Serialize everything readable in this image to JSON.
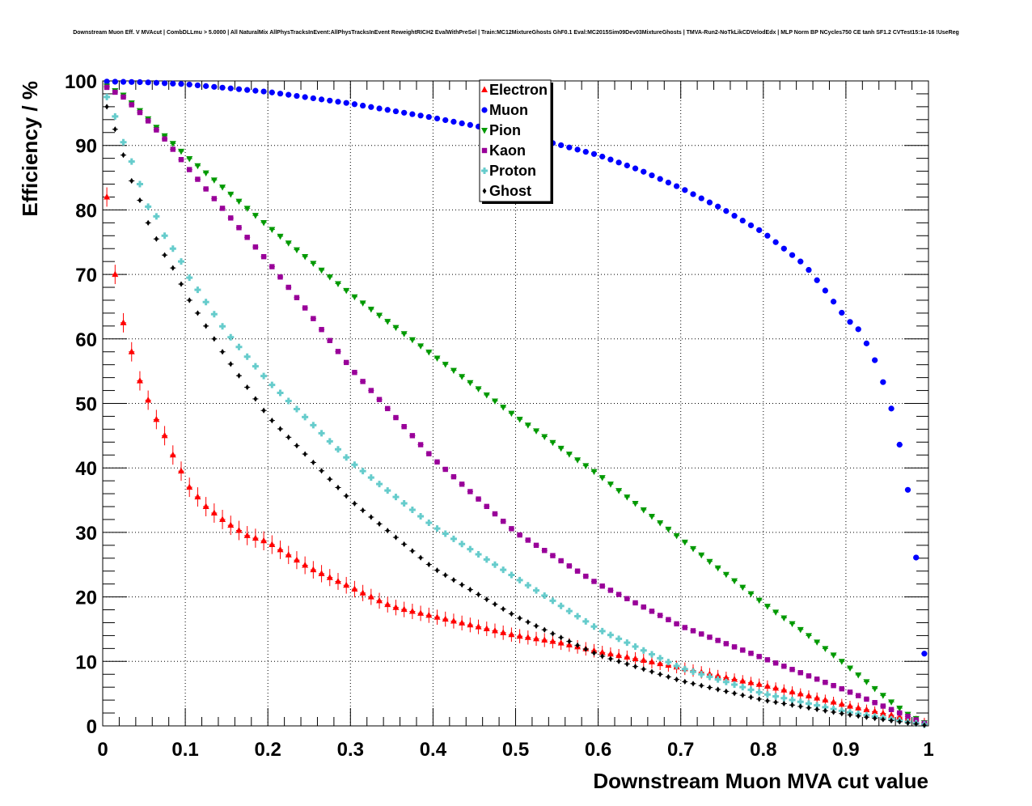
{
  "chart_data": {
    "type": "scatter",
    "title": "Downstream Muon Eff. V MVAcut | CombDLLmu > 5.0000 | All NaturalMix AllPhysTracksInEvent:AllPhysTracksInEvent ReweightRICH2 EvalWithPreSel | Train:MC12MixtureGhosts GhF0.1 Eval:MC2015Sim09Dev03MixtureGhosts | TMVA-Run2-NoTkLikCDVelodEdx | MLP Norm BP NCycles750 CE tanh SF1.2 CVTest15:1e-16 !UseReg",
    "xlabel": "Downstream Muon MVA cut value",
    "ylabel": "Efficiency / %",
    "xlim": [
      0,
      1
    ],
    "ylim": [
      0,
      100
    ],
    "x_ticks": [
      "0",
      "0.1",
      "0.2",
      "0.3",
      "0.4",
      "0.5",
      "0.6",
      "0.7",
      "0.8",
      "0.9",
      "1"
    ],
    "y_ticks": [
      "0",
      "10",
      "20",
      "30",
      "40",
      "50",
      "60",
      "70",
      "80",
      "90",
      "100"
    ],
    "grid": true,
    "legend_position": "top-center",
    "x_bins": {
      "start": 0.005,
      "step": 0.01,
      "count": 100
    },
    "series": [
      {
        "name": "Electron",
        "color": "#ff0000",
        "marker": "triangle-up",
        "error": 1.5,
        "anchors_x": [
          0.005,
          0.015,
          0.025,
          0.035,
          0.045,
          0.055,
          0.065,
          0.075,
          0.085,
          0.095,
          0.105,
          0.125,
          0.15,
          0.175,
          0.2,
          0.25,
          0.3,
          0.35,
          0.4,
          0.45,
          0.5,
          0.55,
          0.6,
          0.65,
          0.7,
          0.75,
          0.8,
          0.85,
          0.9,
          0.95,
          0.995
        ],
        "anchors_y": [
          82,
          70,
          62.5,
          58,
          53.5,
          50.5,
          47.5,
          45,
          42,
          39.5,
          37,
          34,
          31.5,
          29.5,
          28.5,
          24.5,
          21.5,
          18.5,
          17,
          15.5,
          14,
          13,
          11.5,
          10.3,
          9,
          7.6,
          6.3,
          4.8,
          3.2,
          1.8,
          0.5
        ]
      },
      {
        "name": "Muon",
        "color": "#0000ff",
        "marker": "circle",
        "error": 0.3,
        "anchors_x": [
          0.005,
          0.05,
          0.1,
          0.2,
          0.3,
          0.4,
          0.5,
          0.55,
          0.6,
          0.65,
          0.7,
          0.75,
          0.8,
          0.85,
          0.875,
          0.9,
          0.915,
          0.925,
          0.935,
          0.945,
          0.955,
          0.965,
          0.975,
          0.985,
          0.995
        ],
        "anchors_y": [
          99.9,
          99.8,
          99.5,
          98.3,
          96.5,
          94.3,
          91.8,
          90.2,
          88.5,
          86.2,
          83.4,
          80.2,
          76.5,
          71.5,
          67.5,
          63.2,
          61.5,
          59.3,
          56.7,
          53.3,
          49.2,
          43.6,
          36.6,
          26.1,
          11.2
        ]
      },
      {
        "name": "Pion",
        "color": "#009900",
        "marker": "triangle-down",
        "error": 0.3,
        "anchors_x": [
          0.005,
          0.025,
          0.05,
          0.075,
          0.1,
          0.15,
          0.2,
          0.3,
          0.4,
          0.5,
          0.6,
          0.7,
          0.8,
          0.85,
          0.9,
          0.95,
          0.975,
          0.995
        ],
        "anchors_y": [
          99.2,
          97.8,
          94.8,
          91.5,
          88.5,
          83,
          77.5,
          67,
          57.5,
          48,
          39,
          29,
          19,
          14.5,
          9.5,
          4.2,
          1.8,
          0.5
        ]
      },
      {
        "name": "Kaon",
        "color": "#990099",
        "marker": "square",
        "error": 0.3,
        "anchors_x": [
          0.005,
          0.025,
          0.05,
          0.075,
          0.1,
          0.15,
          0.2,
          0.25,
          0.3,
          0.4,
          0.5,
          0.6,
          0.7,
          0.8,
          0.9,
          0.95,
          0.995
        ],
        "anchors_y": [
          99,
          97.5,
          94.5,
          91,
          87,
          79.5,
          72,
          64,
          55.5,
          41.5,
          30,
          22,
          15.5,
          10.5,
          5.5,
          2.8,
          0.4
        ]
      },
      {
        "name": "Proton",
        "color": "#66cccc",
        "marker": "cross",
        "error": 0.3,
        "anchors_x": [
          0.005,
          0.015,
          0.025,
          0.035,
          0.045,
          0.055,
          0.065,
          0.075,
          0.085,
          0.095,
          0.105,
          0.15,
          0.2,
          0.3,
          0.4,
          0.5,
          0.6,
          0.7,
          0.8,
          0.9,
          0.995
        ],
        "anchors_y": [
          97.5,
          94.5,
          90.5,
          87.5,
          84,
          80.5,
          79,
          76,
          74,
          72,
          69.5,
          61,
          53.5,
          41,
          31,
          23,
          15,
          9,
          5,
          2.2,
          0.2
        ]
      },
      {
        "name": "Ghost",
        "color": "#000000",
        "marker": "diamond",
        "error": 0.3,
        "anchors_x": [
          0.005,
          0.015,
          0.025,
          0.035,
          0.045,
          0.055,
          0.065,
          0.075,
          0.085,
          0.095,
          0.105,
          0.15,
          0.2,
          0.3,
          0.4,
          0.5,
          0.6,
          0.7,
          0.8,
          0.9,
          0.995
        ],
        "anchors_y": [
          96,
          92.5,
          88.5,
          84.5,
          81.5,
          78,
          75.5,
          73,
          71,
          68.5,
          66,
          57,
          48,
          35,
          24.5,
          17,
          11,
          7,
          4,
          1.8,
          0.1
        ]
      }
    ]
  }
}
